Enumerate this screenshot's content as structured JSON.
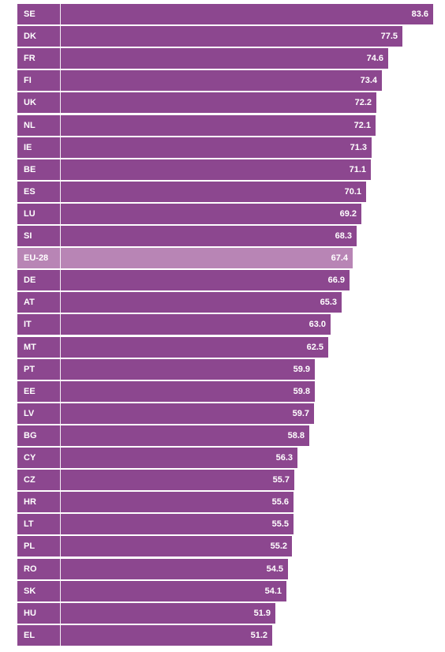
{
  "colors": {
    "bar": "#8c478f",
    "highlight": "#b885b5",
    "text": "#ffffff"
  },
  "chart_data": {
    "type": "bar",
    "orientation": "horizontal",
    "highlight_category": "EU-28",
    "categories": [
      "SE",
      "DK",
      "FR",
      "FI",
      "UK",
      "NL",
      "IE",
      "BE",
      "ES",
      "LU",
      "SI",
      "EU-28",
      "DE",
      "AT",
      "IT",
      "MT",
      "PT",
      "EE",
      "LV",
      "BG",
      "CY",
      "CZ",
      "HR",
      "LT",
      "PL",
      "RO",
      "SK",
      "HU",
      "EL"
    ],
    "values": [
      83.6,
      77.5,
      74.6,
      73.4,
      72.2,
      72.1,
      71.3,
      71.1,
      70.1,
      69.2,
      68.3,
      67.4,
      66.9,
      65.3,
      63.0,
      62.5,
      59.9,
      59.8,
      59.7,
      58.8,
      56.3,
      55.7,
      55.6,
      55.5,
      55.2,
      54.5,
      54.1,
      51.9,
      51.2
    ],
    "value_labels": [
      "83.6",
      "77.5",
      "74.6",
      "73.4",
      "72.2",
      "72.1",
      "71.3",
      "71.1",
      "70.1",
      "69.2",
      "68.3",
      "67.4",
      "66.9",
      "65.3",
      "63.0",
      "62.5",
      "59.9",
      "59.8",
      "59.7",
      "58.8",
      "56.3",
      "55.7",
      "55.6",
      "55.5",
      "55.2",
      "54.5",
      "54.1",
      "51.9",
      "51.2"
    ],
    "xlim": [
      0,
      100
    ],
    "grid": false,
    "legend": "none"
  }
}
